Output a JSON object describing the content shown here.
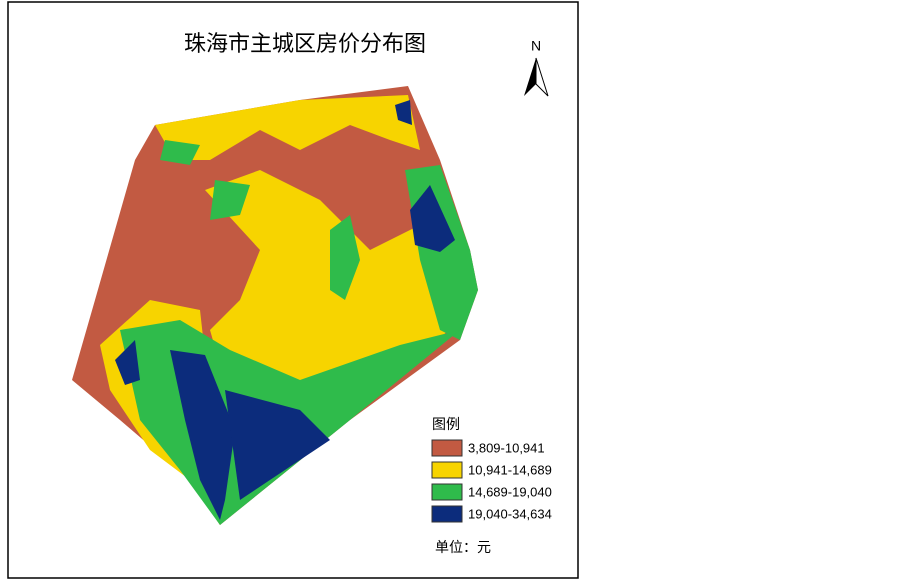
{
  "title": "珠海市主城区房价分布图",
  "north_arrow": "N",
  "legend": {
    "title": "图例",
    "items": [
      {
        "label": "3,809-10,941",
        "color": "#c25a42"
      },
      {
        "label": "10,941-14,689",
        "color": "#f7d400"
      },
      {
        "label": "14,689-19,040",
        "color": "#2fbb4b"
      },
      {
        "label": "19,040-34,634",
        "color": "#0c2c7c"
      }
    ]
  },
  "unit": "单位：元"
}
